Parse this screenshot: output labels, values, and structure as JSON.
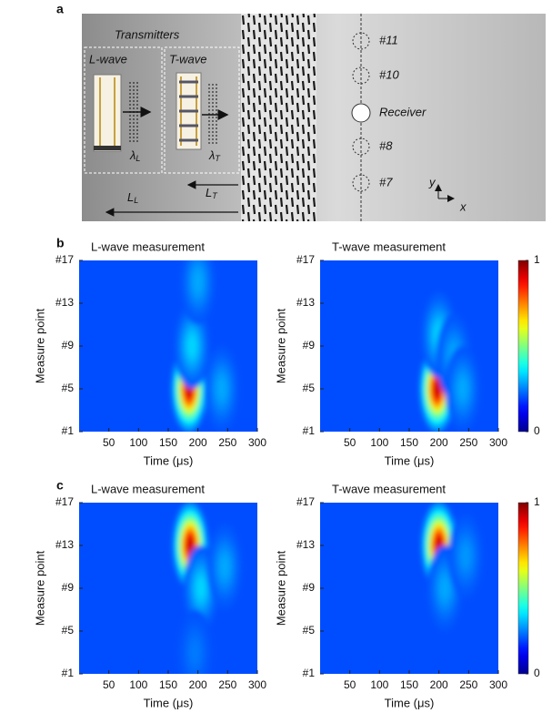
{
  "panel_labels": [
    "a",
    "b",
    "c"
  ],
  "diagram": {
    "transmitters": "Transmitters",
    "l_wave": "L-wave",
    "t_wave": "T-wave",
    "lambda_l": {
      "base": "λ",
      "sub": "L"
    },
    "lambda_t": {
      "base": "λ",
      "sub": "T"
    },
    "length_t": {
      "base": "L",
      "sub": "T"
    },
    "length_l": {
      "base": "L",
      "sub": "L"
    },
    "points": [
      "#11",
      "#10",
      "Receiver",
      "#8",
      "#7"
    ],
    "axis_y": "y",
    "axis_x": "x"
  },
  "chart_data": [
    {
      "type": "heatmap",
      "title": "L-wave measurement",
      "xlabel": "Time (μs)",
      "ylabel": "Measure point",
      "xlim": [
        0,
        300
      ],
      "ylim": [
        1,
        17
      ],
      "xticks": [
        50,
        100,
        150,
        200,
        250,
        300
      ],
      "yticks": [
        {
          "value": 1,
          "label": "#1"
        },
        {
          "value": 5,
          "label": "#5"
        },
        {
          "value": 9,
          "label": "#9"
        },
        {
          "value": 13,
          "label": "#13"
        },
        {
          "value": 17,
          "label": "#17"
        }
      ],
      "colormap": "jet",
      "clim": [
        0,
        1
      ],
      "background": 0.2,
      "peaks": [
        {
          "time": 185,
          "point": 5,
          "value": 1.0
        },
        {
          "time": 190,
          "point": 9,
          "value": 0.35
        },
        {
          "time": 200,
          "point": 15,
          "value": 0.3
        },
        {
          "time": 240,
          "point": 5,
          "value": 0.3
        }
      ]
    },
    {
      "type": "heatmap",
      "title": "T-wave measurement",
      "xlabel": "Time (μs)",
      "ylabel": "Measure point",
      "xlim": [
        0,
        300
      ],
      "ylim": [
        1,
        17
      ],
      "xticks": [
        50,
        100,
        150,
        200,
        250,
        300
      ],
      "yticks": [
        {
          "value": 1,
          "label": "#1"
        },
        {
          "value": 5,
          "label": "#5"
        },
        {
          "value": 9,
          "label": "#9"
        },
        {
          "value": 13,
          "label": "#13"
        },
        {
          "value": 17,
          "label": "#17"
        }
      ],
      "colormap": "jet",
      "clim": [
        0,
        1
      ],
      "background": 0.2,
      "peaks": [
        {
          "time": 197,
          "point": 5,
          "value": 1.0
        },
        {
          "time": 200,
          "point": 10,
          "value": 0.35
        },
        {
          "time": 225,
          "point": 8,
          "value": 0.3
        },
        {
          "time": 240,
          "point": 5,
          "value": 0.3
        }
      ],
      "colorbar": {
        "ticks": [
          0,
          1
        ]
      }
    },
    {
      "type": "heatmap",
      "title": "L-wave measurement",
      "xlabel": "Time (μs)",
      "ylabel": "Measure point",
      "xlim": [
        0,
        300
      ],
      "ylim": [
        1,
        17
      ],
      "xticks": [
        50,
        100,
        150,
        200,
        250,
        300
      ],
      "yticks": [
        {
          "value": 1,
          "label": "#1"
        },
        {
          "value": 5,
          "label": "#5"
        },
        {
          "value": 9,
          "label": "#9"
        },
        {
          "value": 13,
          "label": "#13"
        },
        {
          "value": 17,
          "label": "#17"
        }
      ],
      "colormap": "jet",
      "clim": [
        0,
        1
      ],
      "background": 0.2,
      "peaks": [
        {
          "time": 187,
          "point": 13,
          "value": 1.0
        },
        {
          "time": 205,
          "point": 9,
          "value": 0.35
        },
        {
          "time": 245,
          "point": 11,
          "value": 0.3
        },
        {
          "time": 195,
          "point": 3,
          "value": 0.25
        }
      ]
    },
    {
      "type": "heatmap",
      "title": "T-wave measurement",
      "xlabel": "Time (μs)",
      "ylabel": "Measure point",
      "xlim": [
        0,
        300
      ],
      "ylim": [
        1,
        17
      ],
      "xticks": [
        50,
        100,
        150,
        200,
        250,
        300
      ],
      "yticks": [
        {
          "value": 1,
          "label": "#1"
        },
        {
          "value": 5,
          "label": "#5"
        },
        {
          "value": 9,
          "label": "#9"
        },
        {
          "value": 13,
          "label": "#13"
        },
        {
          "value": 17,
          "label": "#17"
        }
      ],
      "colormap": "jet",
      "clim": [
        0,
        1
      ],
      "background": 0.2,
      "peaks": [
        {
          "time": 200,
          "point": 13,
          "value": 1.0
        },
        {
          "time": 210,
          "point": 9,
          "value": 0.3
        },
        {
          "time": 245,
          "point": 12,
          "value": 0.28
        }
      ],
      "colorbar": {
        "ticks": [
          0,
          1
        ]
      }
    }
  ]
}
